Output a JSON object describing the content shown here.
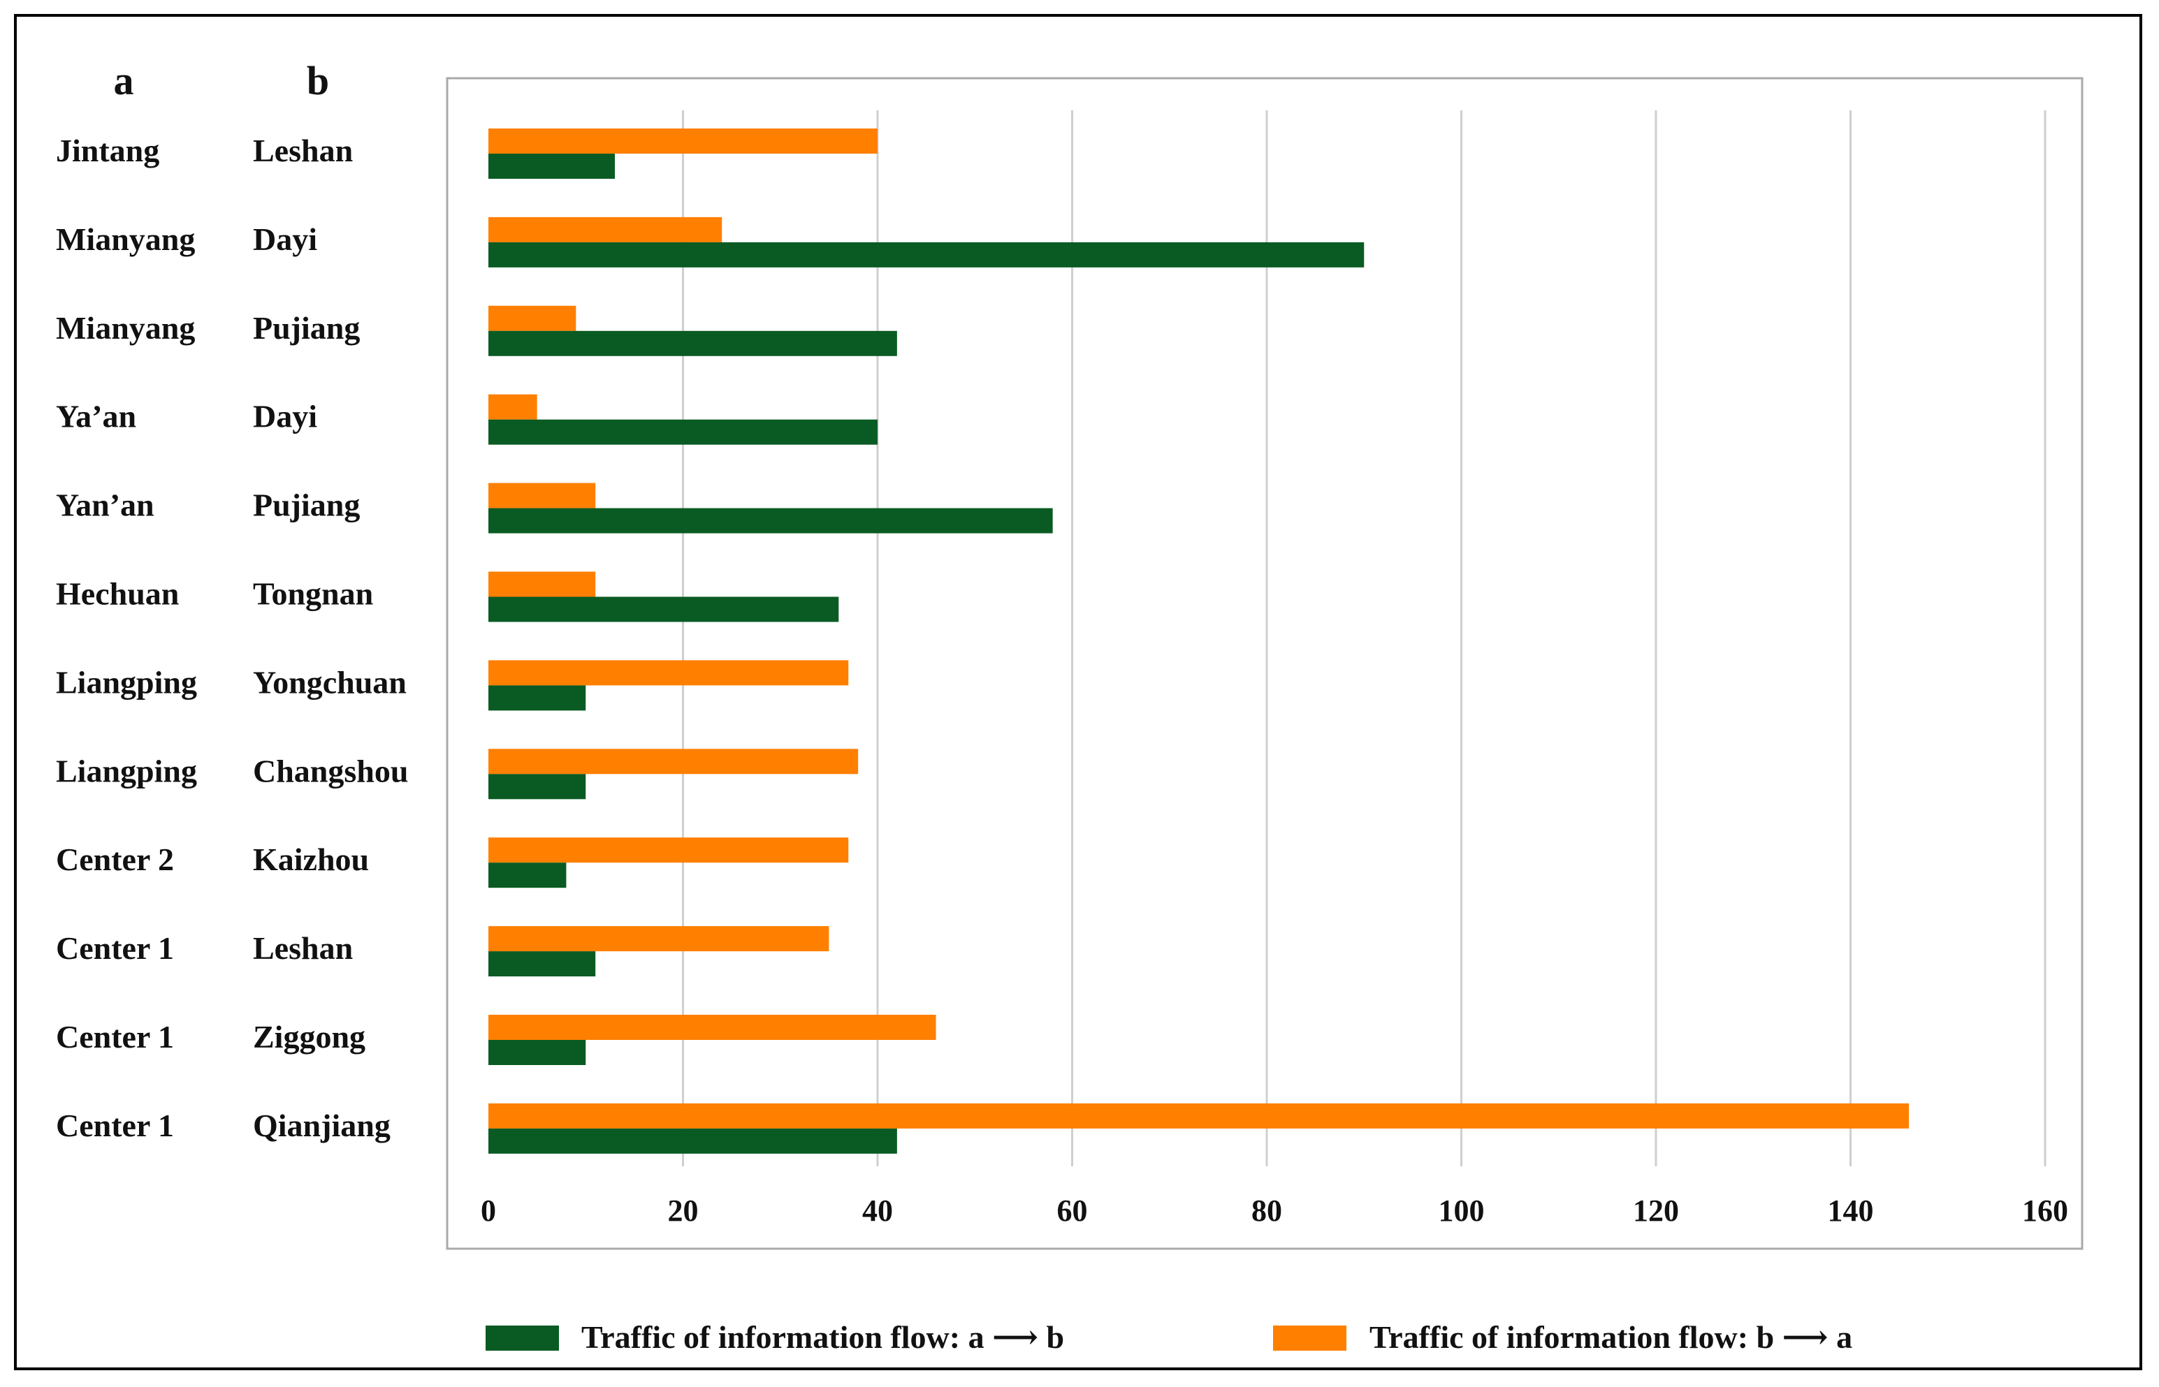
{
  "chart_data": {
    "type": "bar",
    "orientation": "horizontal",
    "column_headers": {
      "a": "a",
      "b": "b"
    },
    "categories": [
      {
        "a": "Jintang",
        "b": "Leshan"
      },
      {
        "a": "Mianyang",
        "b": "Dayi"
      },
      {
        "a": "Mianyang",
        "b": "Pujiang"
      },
      {
        "a": "Ya’an",
        "b": "Dayi"
      },
      {
        "a": "Yan’an",
        "b": "Pujiang"
      },
      {
        "a": "Hechuan",
        "b": "Tongnan"
      },
      {
        "a": "Liangping",
        "b": "Yongchuan"
      },
      {
        "a": "Liangping",
        "b": "Changshou"
      },
      {
        "a": "Center 2",
        "b": "Kaizhou"
      },
      {
        "a": "Center 1",
        "b": "Leshan"
      },
      {
        "a": "Center 1",
        "b": "Ziggong"
      },
      {
        "a": "Center 1",
        "b": "Qianjiang"
      }
    ],
    "series": [
      {
        "name": "Traffic of information flow: a ⟶ b",
        "color": "#0a5b23",
        "values": [
          13,
          90,
          42,
          40,
          58,
          36,
          10,
          10,
          8,
          11,
          10,
          42
        ]
      },
      {
        "name": "Traffic of information flow: b ⟶ a",
        "color": "#ff7f00",
        "values": [
          40,
          24,
          9,
          5,
          11,
          11,
          37,
          38,
          37,
          35,
          46,
          146
        ]
      }
    ],
    "xlim": [
      0,
      160
    ],
    "xticks": [
      "0",
      "20",
      "40",
      "60",
      "80",
      "100",
      "120",
      "140",
      "160"
    ],
    "grid": "vertical",
    "legend": "bottom"
  }
}
